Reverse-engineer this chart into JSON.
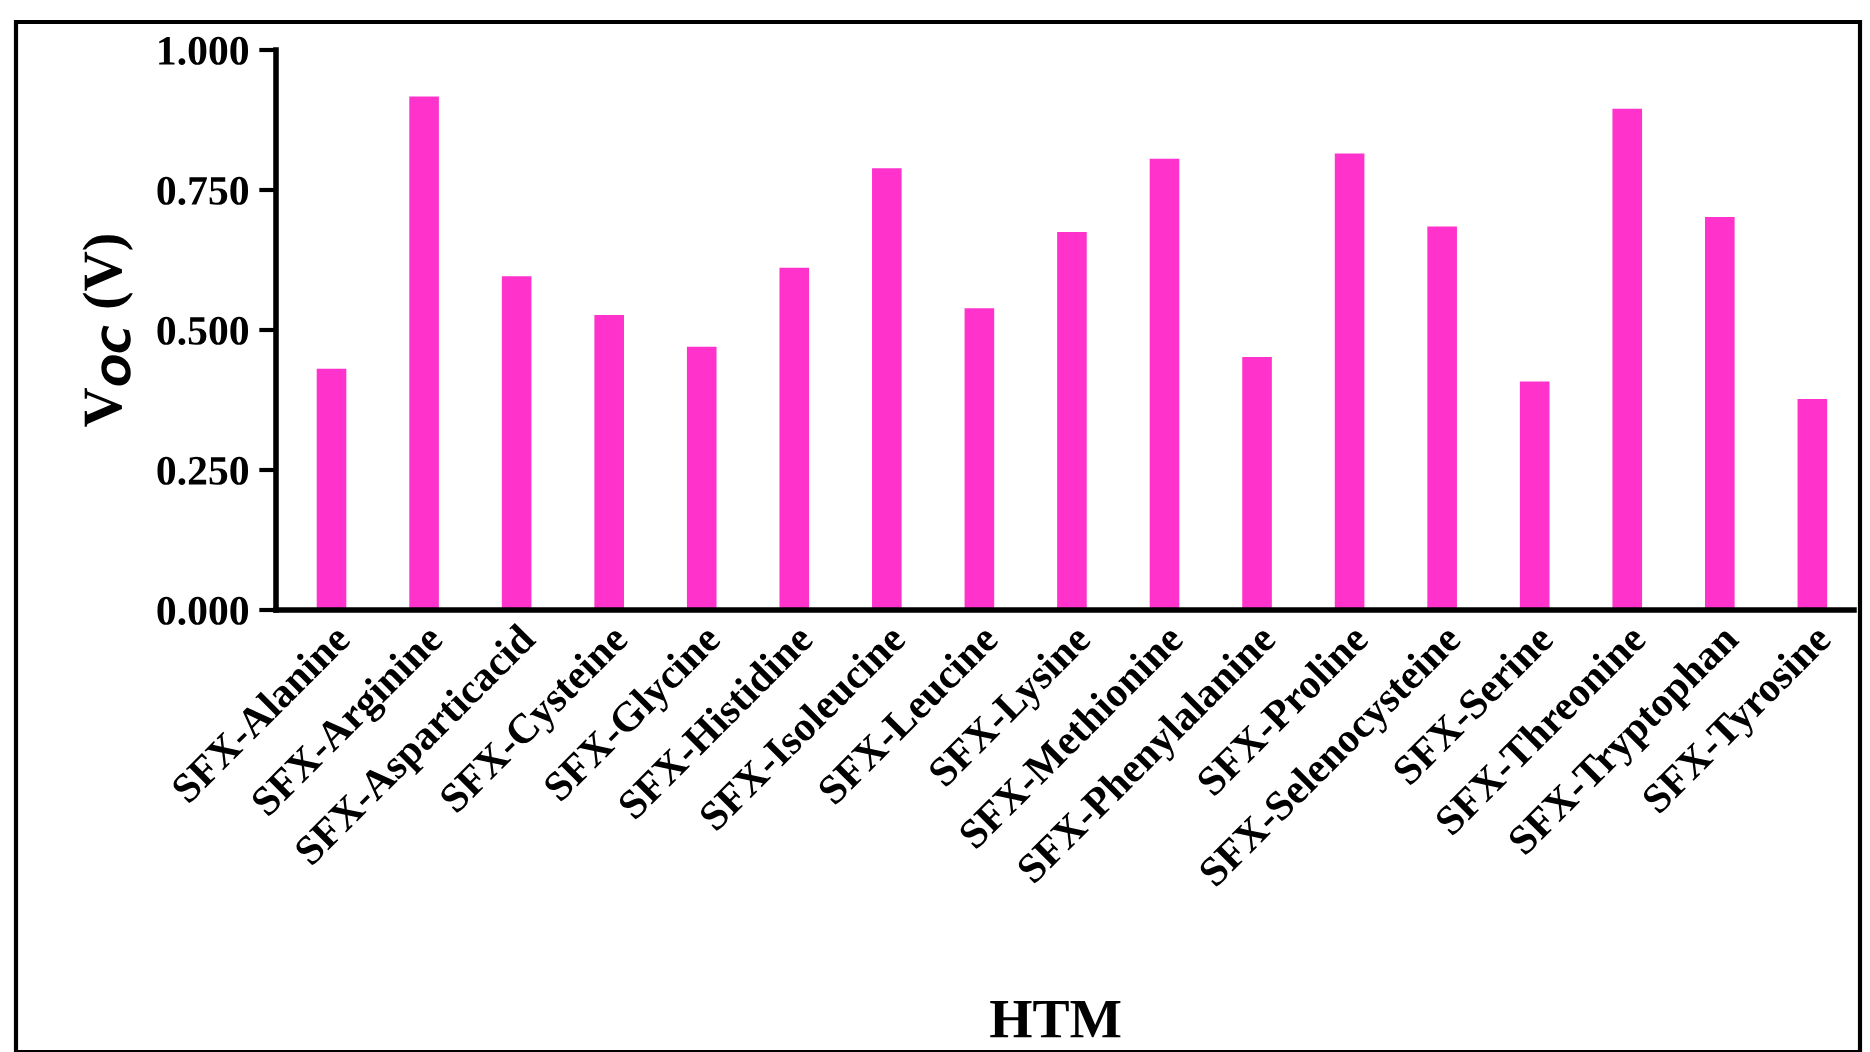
{
  "chart_data": {
    "type": "bar",
    "xlabel": "HTM",
    "ylabel": "V$_{OC}$ (V)",
    "categories": [
      "SFX-Alanine",
      "SFX-Arginine",
      "SFX-Asparticacid",
      "SFX-Cysteine",
      "SFX-Glycine",
      "SFX-Histidine",
      "SFX-Isoleucine",
      "SFX-Leucine",
      "SFX-Lysine",
      "SFX-Methionine",
      "SFX-Phenylalanine",
      "SFX-Proline",
      "SFX-Selenocysteine",
      "SFX-Serine",
      "SFX-Threonine",
      "SFX-Tryptophan",
      "SFX-Tyrosine"
    ],
    "values": [
      0.431,
      0.917,
      0.596,
      0.527,
      0.47,
      0.611,
      0.789,
      0.539,
      0.675,
      0.806,
      0.452,
      0.815,
      0.685,
      0.408,
      0.895,
      0.702,
      0.377
    ],
    "color": "#ff33cc",
    "ylim": [
      0,
      1
    ],
    "yticks": [
      {
        "value": 0,
        "label": "0.000"
      },
      {
        "value": 0.25,
        "label": "0.250"
      },
      {
        "value": 0.5,
        "label": "0.500"
      },
      {
        "value": 0.75,
        "label": "0.750"
      },
      {
        "value": 1,
        "label": "1.000"
      }
    ],
    "grid": false,
    "legend": false
  }
}
